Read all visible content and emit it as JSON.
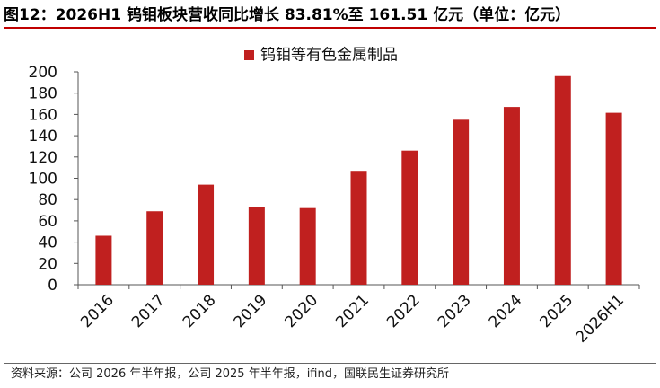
{
  "title": "图12：2026H1 钨钼板块营收同比增长 83.81%至 161.51 亿元（单位：亿元）",
  "source": "资料来源：公司 2026 年半年报，公司 2025 年半年报，ifind，国联民生证券研究所",
  "colors": {
    "bar": "#c0201f",
    "title_rule": "#c00000",
    "axis": "#555555"
  },
  "chart_data": {
    "type": "bar",
    "title": "",
    "xlabel": "",
    "ylabel": "",
    "categories": [
      "2016",
      "2017",
      "2018",
      "2019",
      "2020",
      "2021",
      "2022",
      "2023",
      "2024",
      "2025",
      "2026H1"
    ],
    "series": [
      {
        "name": "钨钼等有色金属制品",
        "values": [
          46,
          69,
          94,
          73,
          72,
          107,
          126,
          155,
          167,
          196,
          161.51
        ]
      }
    ],
    "ylim": [
      0,
      200
    ],
    "yticks": [
      0,
      20,
      40,
      60,
      80,
      100,
      120,
      140,
      160,
      180,
      200
    ],
    "grid": false,
    "legend": "top"
  }
}
